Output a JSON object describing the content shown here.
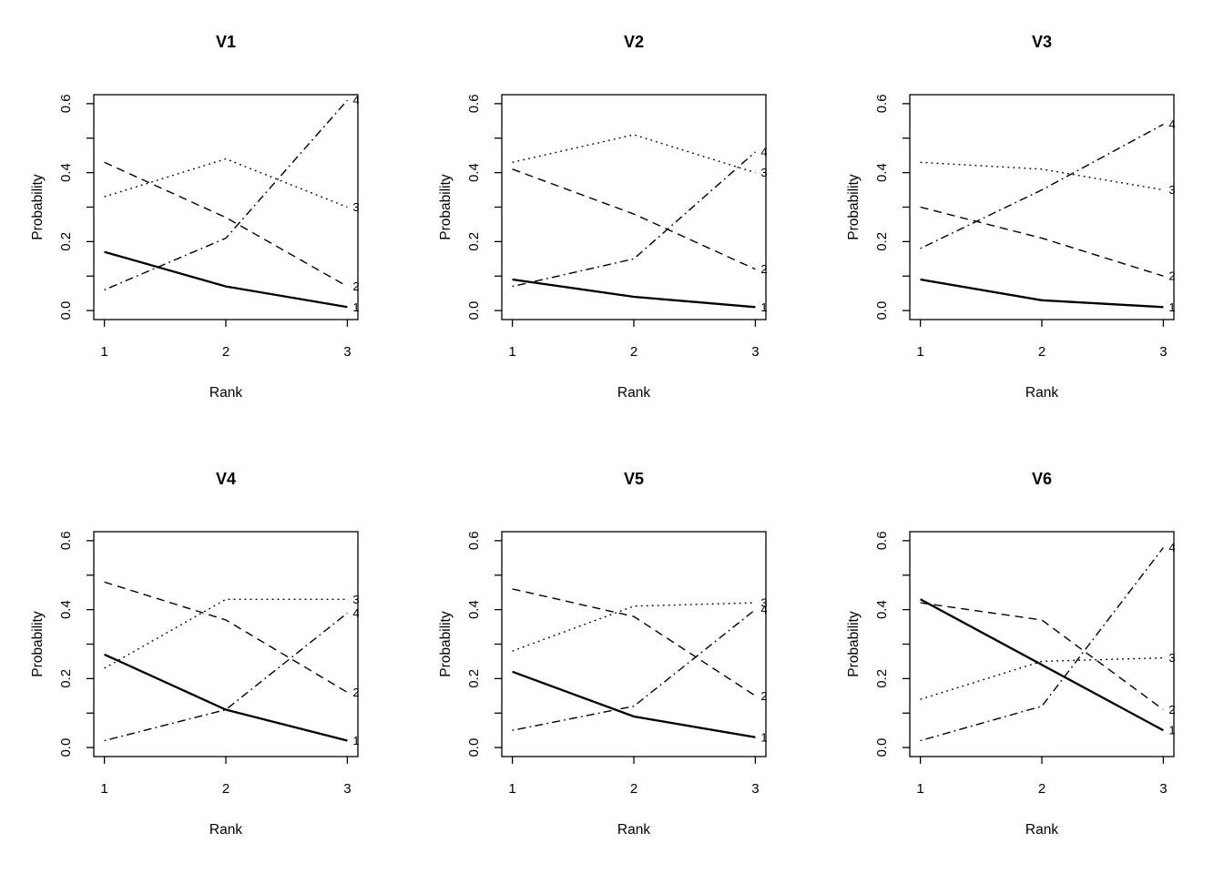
{
  "page": {
    "background": "#ffffff",
    "line_color": "#000000"
  },
  "chart_data": [
    {
      "type": "line",
      "title": "V1",
      "xlabel": "Rank",
      "ylabel": "Probability",
      "x": [
        1,
        2,
        3
      ],
      "xlim": [
        1,
        3
      ],
      "ylim": [
        0,
        0.6
      ],
      "xticks": [
        1,
        2,
        3
      ],
      "yticks": [
        0,
        0.1,
        0.2,
        0.3,
        0.4,
        0.5,
        0.6
      ],
      "ytick_labels": [
        "0.0",
        "0.2",
        "0.4",
        "0.6"
      ],
      "ytick_label_values": [
        0,
        0.2,
        0.4,
        0.6
      ],
      "grid": false,
      "legend": "line-end-labels",
      "series": [
        {
          "name": "1",
          "linetype": "solid",
          "values": [
            0.17,
            0.07,
            0.01
          ]
        },
        {
          "name": "2",
          "linetype": "dashed",
          "values": [
            0.43,
            0.27,
            0.07
          ]
        },
        {
          "name": "3",
          "linetype": "dotted",
          "values": [
            0.33,
            0.44,
            0.3
          ]
        },
        {
          "name": "4",
          "linetype": "dashdot",
          "values": [
            0.06,
            0.21,
            0.61
          ]
        }
      ]
    },
    {
      "type": "line",
      "title": "V2",
      "xlabel": "Rank",
      "ylabel": "Probability",
      "x": [
        1,
        2,
        3
      ],
      "xlim": [
        1,
        3
      ],
      "ylim": [
        0,
        0.6
      ],
      "xticks": [
        1,
        2,
        3
      ],
      "yticks": [
        0,
        0.1,
        0.2,
        0.3,
        0.4,
        0.5,
        0.6
      ],
      "ytick_labels": [
        "0.0",
        "0.2",
        "0.4",
        "0.6"
      ],
      "ytick_label_values": [
        0,
        0.2,
        0.4,
        0.6
      ],
      "grid": false,
      "legend": "line-end-labels",
      "series": [
        {
          "name": "1",
          "linetype": "solid",
          "values": [
            0.09,
            0.04,
            0.01
          ]
        },
        {
          "name": "2",
          "linetype": "dashed",
          "values": [
            0.41,
            0.28,
            0.12
          ]
        },
        {
          "name": "3",
          "linetype": "dotted",
          "values": [
            0.43,
            0.51,
            0.4
          ]
        },
        {
          "name": "4",
          "linetype": "dashdot",
          "values": [
            0.07,
            0.15,
            0.46
          ]
        }
      ]
    },
    {
      "type": "line",
      "title": "V3",
      "xlabel": "Rank",
      "ylabel": "Probability",
      "x": [
        1,
        2,
        3
      ],
      "xlim": [
        1,
        3
      ],
      "ylim": [
        0,
        0.6
      ],
      "xticks": [
        1,
        2,
        3
      ],
      "yticks": [
        0,
        0.1,
        0.2,
        0.3,
        0.4,
        0.5,
        0.6
      ],
      "ytick_labels": [
        "0.0",
        "0.2",
        "0.4",
        "0.6"
      ],
      "ytick_label_values": [
        0,
        0.2,
        0.4,
        0.6
      ],
      "grid": false,
      "legend": "line-end-labels",
      "series": [
        {
          "name": "1",
          "linetype": "solid",
          "values": [
            0.09,
            0.03,
            0.01
          ]
        },
        {
          "name": "2",
          "linetype": "dashed",
          "values": [
            0.3,
            0.21,
            0.1
          ]
        },
        {
          "name": "3",
          "linetype": "dotted",
          "values": [
            0.43,
            0.41,
            0.35
          ]
        },
        {
          "name": "4",
          "linetype": "dashdot",
          "values": [
            0.18,
            0.35,
            0.54
          ]
        }
      ]
    },
    {
      "type": "line",
      "title": "V4",
      "xlabel": "Rank",
      "ylabel": "Probability",
      "x": [
        1,
        2,
        3
      ],
      "xlim": [
        1,
        3
      ],
      "ylim": [
        0,
        0.6
      ],
      "xticks": [
        1,
        2,
        3
      ],
      "yticks": [
        0,
        0.1,
        0.2,
        0.3,
        0.4,
        0.5,
        0.6
      ],
      "ytick_labels": [
        "0.0",
        "0.2",
        "0.4",
        "0.6"
      ],
      "ytick_label_values": [
        0,
        0.2,
        0.4,
        0.6
      ],
      "grid": false,
      "legend": "line-end-labels",
      "series": [
        {
          "name": "1",
          "linetype": "solid",
          "values": [
            0.27,
            0.11,
            0.02
          ]
        },
        {
          "name": "2",
          "linetype": "dashed",
          "values": [
            0.48,
            0.37,
            0.16
          ]
        },
        {
          "name": "3",
          "linetype": "dotted",
          "values": [
            0.23,
            0.43,
            0.43
          ]
        },
        {
          "name": "4",
          "linetype": "dashdot",
          "values": [
            0.02,
            0.11,
            0.39
          ]
        }
      ]
    },
    {
      "type": "line",
      "title": "V5",
      "xlabel": "Rank",
      "ylabel": "Probability",
      "x": [
        1,
        2,
        3
      ],
      "xlim": [
        1,
        3
      ],
      "ylim": [
        0,
        0.6
      ],
      "xticks": [
        1,
        2,
        3
      ],
      "yticks": [
        0,
        0.1,
        0.2,
        0.3,
        0.4,
        0.5,
        0.6
      ],
      "ytick_labels": [
        "0.0",
        "0.2",
        "0.4",
        "0.6"
      ],
      "ytick_label_values": [
        0,
        0.2,
        0.4,
        0.6
      ],
      "grid": false,
      "legend": "line-end-labels",
      "series": [
        {
          "name": "1",
          "linetype": "solid",
          "values": [
            0.22,
            0.09,
            0.03
          ]
        },
        {
          "name": "2",
          "linetype": "dashed",
          "values": [
            0.46,
            0.38,
            0.15
          ]
        },
        {
          "name": "3",
          "linetype": "dotted",
          "values": [
            0.28,
            0.41,
            0.42
          ]
        },
        {
          "name": "4",
          "linetype": "dashdot",
          "values": [
            0.05,
            0.12,
            0.4
          ]
        }
      ]
    },
    {
      "type": "line",
      "title": "V6",
      "xlabel": "Rank",
      "ylabel": "Probability",
      "x": [
        1,
        2,
        3
      ],
      "xlim": [
        1,
        3
      ],
      "ylim": [
        0,
        0.6
      ],
      "xticks": [
        1,
        2,
        3
      ],
      "yticks": [
        0,
        0.1,
        0.2,
        0.3,
        0.4,
        0.5,
        0.6
      ],
      "ytick_labels": [
        "0.0",
        "0.2",
        "0.4",
        "0.6"
      ],
      "ytick_label_values": [
        0,
        0.2,
        0.4,
        0.6
      ],
      "grid": false,
      "legend": "line-end-labels",
      "series": [
        {
          "name": "1",
          "linetype": "solid",
          "values": [
            0.43,
            0.24,
            0.05
          ]
        },
        {
          "name": "2",
          "linetype": "dashed",
          "values": [
            0.42,
            0.37,
            0.11
          ]
        },
        {
          "name": "3",
          "linetype": "dotted",
          "values": [
            0.14,
            0.25,
            0.26
          ]
        },
        {
          "name": "4",
          "linetype": "dashdot",
          "values": [
            0.02,
            0.12,
            0.58
          ]
        }
      ]
    }
  ]
}
